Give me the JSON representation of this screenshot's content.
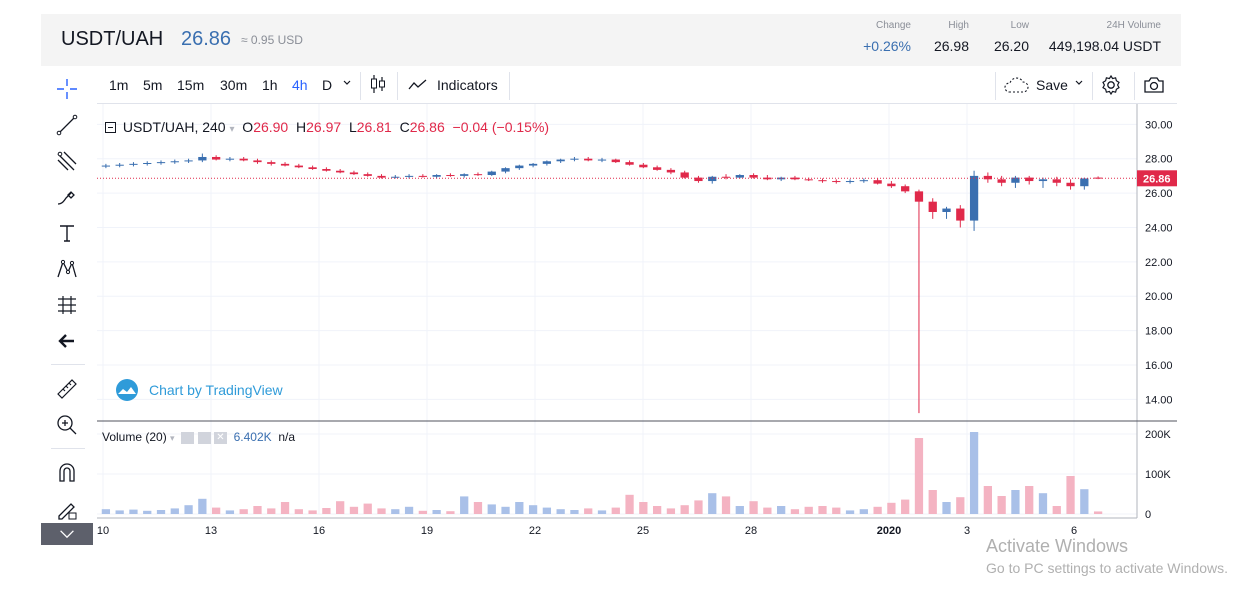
{
  "header": {
    "pair": "USDT/UAH",
    "price": "26.86",
    "approx": "≈ 0.95 USD",
    "stats": [
      {
        "label": "Change",
        "value": "+0.26%",
        "positive": true
      },
      {
        "label": "High",
        "value": "26.98"
      },
      {
        "label": "Low",
        "value": "26.20"
      },
      {
        "label": "24H Volume",
        "value": "449,198.04 USDT"
      }
    ]
  },
  "toolbar": {
    "intervals": [
      "1m",
      "5m",
      "15m",
      "30m",
      "1h",
      "4h",
      "D"
    ],
    "active_interval": "4h",
    "indicators_label": "Indicators",
    "save_label": "Save"
  },
  "legend": {
    "symbol": "USDT/UAH, 240",
    "o_label": "O",
    "o": "26.90",
    "h_label": "H",
    "h": "26.97",
    "l_label": "L",
    "l": "26.81",
    "c_label": "C",
    "c": "26.86",
    "change": "−0.04 (−0.15%)"
  },
  "volume_legend": {
    "label": "Volume (20)",
    "value": "6.402K",
    "na": "n/a"
  },
  "branding": {
    "text": "Chart by TradingView"
  },
  "watermark": {
    "line1": "Activate Windows",
    "line2": "Go to PC settings to activate Windows."
  },
  "colors": {
    "up": "#3a6fb0",
    "down": "#e0294a",
    "vol_up": "#a9c0e8",
    "vol_down": "#f4b3c2",
    "last_price_bg": "#e0294a"
  },
  "chart_data": {
    "type": "candlestick",
    "interval": "240",
    "last_price": 26.86,
    "price_axis": {
      "ylim": [
        12.8,
        30.6
      ],
      "ticks": [
        "30.00",
        "28.00",
        "26.00",
        "24.00",
        "22.00",
        "20.00",
        "18.00",
        "16.00",
        "14.00"
      ]
    },
    "volume_axis": {
      "ylim": [
        0,
        215000
      ],
      "ticks": [
        "200K",
        "100K",
        "0"
      ]
    },
    "x_ticks": [
      "10",
      "13",
      "16",
      "19",
      "22",
      "25",
      "28",
      "2020",
      "3",
      "6"
    ],
    "candles": [
      {
        "o": 27.55,
        "h": 27.7,
        "l": 27.45,
        "c": 27.6,
        "v": 12000
      },
      {
        "o": 27.6,
        "h": 27.75,
        "l": 27.5,
        "c": 27.65,
        "v": 9000
      },
      {
        "o": 27.65,
        "h": 27.8,
        "l": 27.55,
        "c": 27.7,
        "v": 11000
      },
      {
        "o": 27.7,
        "h": 27.85,
        "l": 27.6,
        "c": 27.75,
        "v": 8000
      },
      {
        "o": 27.75,
        "h": 27.9,
        "l": 27.65,
        "c": 27.8,
        "v": 10000
      },
      {
        "o": 27.8,
        "h": 27.95,
        "l": 27.7,
        "c": 27.85,
        "v": 14000
      },
      {
        "o": 27.85,
        "h": 28.0,
        "l": 27.75,
        "c": 27.9,
        "v": 22000
      },
      {
        "o": 27.9,
        "h": 28.3,
        "l": 27.8,
        "c": 28.1,
        "v": 38000
      },
      {
        "o": 28.1,
        "h": 28.2,
        "l": 27.9,
        "c": 27.95,
        "v": 16000
      },
      {
        "o": 27.95,
        "h": 28.1,
        "l": 27.85,
        "c": 28.0,
        "v": 9000
      },
      {
        "o": 28.0,
        "h": 28.1,
        "l": 27.85,
        "c": 27.9,
        "v": 12000
      },
      {
        "o": 27.9,
        "h": 28.0,
        "l": 27.7,
        "c": 27.8,
        "v": 20000
      },
      {
        "o": 27.8,
        "h": 27.9,
        "l": 27.6,
        "c": 27.7,
        "v": 14000
      },
      {
        "o": 27.7,
        "h": 27.8,
        "l": 27.55,
        "c": 27.6,
        "v": 30000
      },
      {
        "o": 27.6,
        "h": 27.7,
        "l": 27.45,
        "c": 27.5,
        "v": 12000
      },
      {
        "o": 27.5,
        "h": 27.6,
        "l": 27.35,
        "c": 27.4,
        "v": 9000
      },
      {
        "o": 27.4,
        "h": 27.5,
        "l": 27.25,
        "c": 27.3,
        "v": 15000
      },
      {
        "o": 27.3,
        "h": 27.4,
        "l": 27.15,
        "c": 27.2,
        "v": 32000
      },
      {
        "o": 27.2,
        "h": 27.3,
        "l": 27.05,
        "c": 27.1,
        "v": 18000
      },
      {
        "o": 27.1,
        "h": 27.2,
        "l": 26.95,
        "c": 27.0,
        "v": 26000
      },
      {
        "o": 27.0,
        "h": 27.1,
        "l": 26.85,
        "c": 26.9,
        "v": 14000
      },
      {
        "o": 26.9,
        "h": 27.05,
        "l": 26.85,
        "c": 26.95,
        "v": 12000
      },
      {
        "o": 26.95,
        "h": 27.1,
        "l": 26.85,
        "c": 27.0,
        "v": 18000
      },
      {
        "o": 27.0,
        "h": 27.1,
        "l": 26.9,
        "c": 26.95,
        "v": 8000
      },
      {
        "o": 26.95,
        "h": 27.1,
        "l": 26.85,
        "c": 27.05,
        "v": 10000
      },
      {
        "o": 27.05,
        "h": 27.15,
        "l": 26.95,
        "c": 27.0,
        "v": 7000
      },
      {
        "o": 27.0,
        "h": 27.15,
        "l": 26.9,
        "c": 27.1,
        "v": 44000
      },
      {
        "o": 27.1,
        "h": 27.2,
        "l": 27.0,
        "c": 27.05,
        "v": 30000
      },
      {
        "o": 27.05,
        "h": 27.3,
        "l": 27.0,
        "c": 27.25,
        "v": 24000
      },
      {
        "o": 27.25,
        "h": 27.5,
        "l": 27.15,
        "c": 27.45,
        "v": 18000
      },
      {
        "o": 27.45,
        "h": 27.65,
        "l": 27.35,
        "c": 27.6,
        "v": 30000
      },
      {
        "o": 27.6,
        "h": 27.75,
        "l": 27.5,
        "c": 27.7,
        "v": 22000
      },
      {
        "o": 27.7,
        "h": 27.9,
        "l": 27.6,
        "c": 27.85,
        "v": 16000
      },
      {
        "o": 27.85,
        "h": 28.0,
        "l": 27.75,
        "c": 27.95,
        "v": 12000
      },
      {
        "o": 27.95,
        "h": 28.1,
        "l": 27.85,
        "c": 28.0,
        "v": 10000
      },
      {
        "o": 28.0,
        "h": 28.1,
        "l": 27.85,
        "c": 27.9,
        "v": 14000
      },
      {
        "o": 27.9,
        "h": 28.05,
        "l": 27.8,
        "c": 27.95,
        "v": 9000
      },
      {
        "o": 27.95,
        "h": 28.0,
        "l": 27.75,
        "c": 27.8,
        "v": 16000
      },
      {
        "o": 27.8,
        "h": 27.9,
        "l": 27.6,
        "c": 27.65,
        "v": 48000
      },
      {
        "o": 27.65,
        "h": 27.75,
        "l": 27.45,
        "c": 27.5,
        "v": 30000
      },
      {
        "o": 27.5,
        "h": 27.6,
        "l": 27.3,
        "c": 27.35,
        "v": 20000
      },
      {
        "o": 27.35,
        "h": 27.45,
        "l": 27.1,
        "c": 27.2,
        "v": 14000
      },
      {
        "o": 27.2,
        "h": 27.3,
        "l": 26.85,
        "c": 26.9,
        "v": 22000
      },
      {
        "o": 26.9,
        "h": 27.0,
        "l": 26.6,
        "c": 26.7,
        "v": 34000
      },
      {
        "o": 26.7,
        "h": 27.0,
        "l": 26.55,
        "c": 26.95,
        "v": 52000
      },
      {
        "o": 26.95,
        "h": 27.1,
        "l": 26.8,
        "c": 26.9,
        "v": 44000
      },
      {
        "o": 26.9,
        "h": 27.1,
        "l": 26.85,
        "c": 27.05,
        "v": 20000
      },
      {
        "o": 27.05,
        "h": 27.15,
        "l": 26.85,
        "c": 26.9,
        "v": 32000
      },
      {
        "o": 26.9,
        "h": 27.05,
        "l": 26.75,
        "c": 26.8,
        "v": 16000
      },
      {
        "o": 26.8,
        "h": 26.95,
        "l": 26.7,
        "c": 26.9,
        "v": 20000
      },
      {
        "o": 26.9,
        "h": 27.0,
        "l": 26.75,
        "c": 26.8,
        "v": 12000
      },
      {
        "o": 26.8,
        "h": 26.9,
        "l": 26.7,
        "c": 26.75,
        "v": 18000
      },
      {
        "o": 26.75,
        "h": 26.85,
        "l": 26.6,
        "c": 26.7,
        "v": 20000
      },
      {
        "o": 26.7,
        "h": 26.8,
        "l": 26.55,
        "c": 26.65,
        "v": 16000
      },
      {
        "o": 26.65,
        "h": 26.8,
        "l": 26.55,
        "c": 26.7,
        "v": 9000
      },
      {
        "o": 26.7,
        "h": 26.85,
        "l": 26.6,
        "c": 26.75,
        "v": 12000
      },
      {
        "o": 26.75,
        "h": 26.85,
        "l": 26.5,
        "c": 26.55,
        "v": 18000
      },
      {
        "o": 26.55,
        "h": 26.7,
        "l": 26.3,
        "c": 26.4,
        "v": 28000
      },
      {
        "o": 26.4,
        "h": 26.5,
        "l": 26.0,
        "c": 26.1,
        "v": 36000
      },
      {
        "o": 26.1,
        "h": 26.2,
        "l": 13.2,
        "c": 25.5,
        "v": 190000
      },
      {
        "o": 25.5,
        "h": 25.7,
        "l": 24.5,
        "c": 24.9,
        "v": 60000
      },
      {
        "o": 24.9,
        "h": 25.2,
        "l": 24.5,
        "c": 25.1,
        "v": 30000
      },
      {
        "o": 25.1,
        "h": 25.3,
        "l": 24.0,
        "c": 24.4,
        "v": 42000
      },
      {
        "o": 24.4,
        "h": 27.3,
        "l": 23.8,
        "c": 27.0,
        "v": 205000
      },
      {
        "o": 27.0,
        "h": 27.2,
        "l": 26.6,
        "c": 26.8,
        "v": 70000
      },
      {
        "o": 26.8,
        "h": 27.0,
        "l": 26.4,
        "c": 26.6,
        "v": 45000
      },
      {
        "o": 26.6,
        "h": 27.0,
        "l": 26.3,
        "c": 26.9,
        "v": 60000
      },
      {
        "o": 26.9,
        "h": 27.0,
        "l": 26.5,
        "c": 26.7,
        "v": 70000
      },
      {
        "o": 26.7,
        "h": 26.9,
        "l": 26.3,
        "c": 26.8,
        "v": 52000
      },
      {
        "o": 26.8,
        "h": 26.95,
        "l": 26.4,
        "c": 26.6,
        "v": 20000
      },
      {
        "o": 26.6,
        "h": 26.8,
        "l": 26.2,
        "c": 26.4,
        "v": 95000
      },
      {
        "o": 26.4,
        "h": 26.9,
        "l": 26.2,
        "c": 26.85,
        "v": 62000
      },
      {
        "o": 26.9,
        "h": 26.97,
        "l": 26.81,
        "c": 26.86,
        "v": 6402
      }
    ]
  }
}
